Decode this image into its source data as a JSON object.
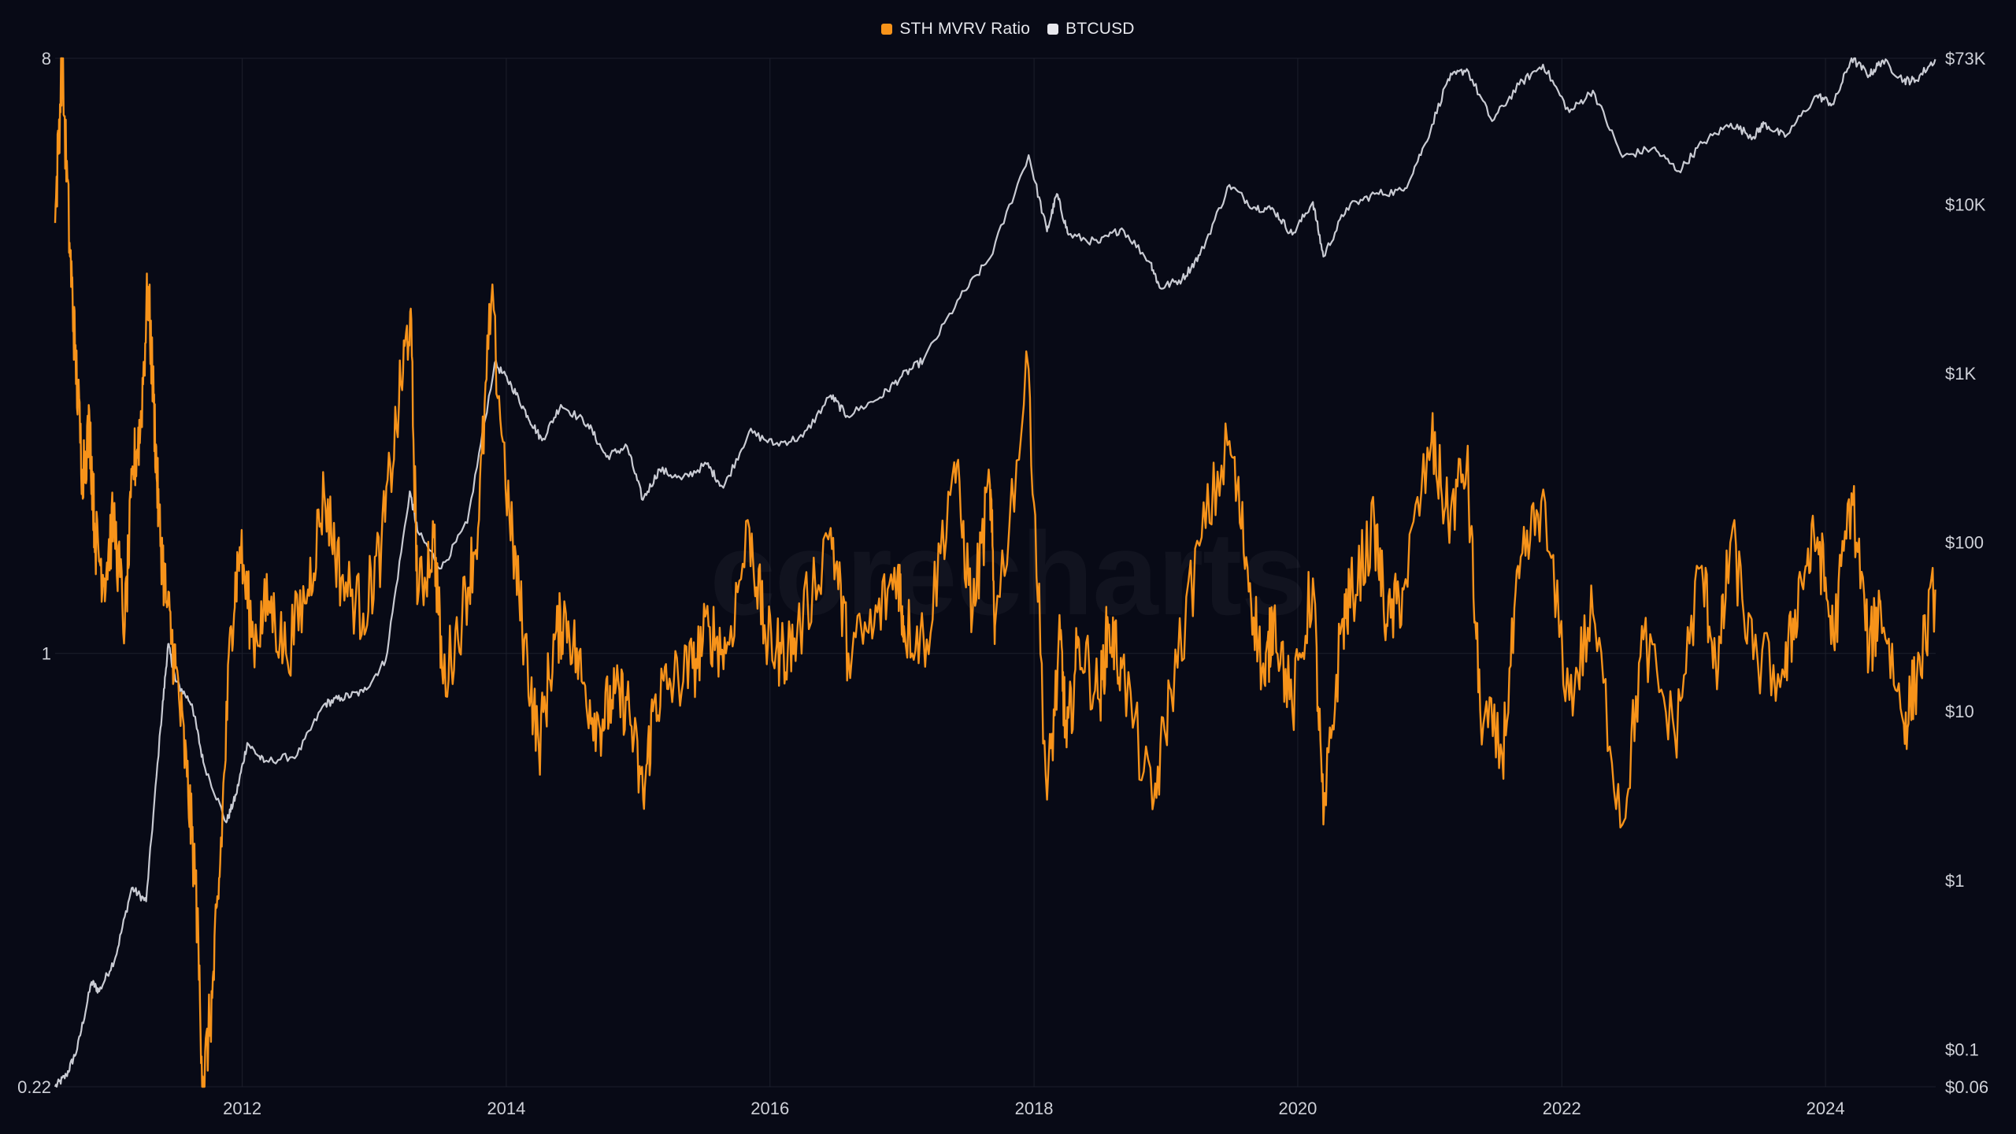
{
  "legend": {
    "items": [
      {
        "label": "STH MVRV Ratio",
        "color": "#f7931a"
      },
      {
        "label": "BTCUSD",
        "color": "#e8e8ee"
      }
    ]
  },
  "watermark": "corecharts",
  "colors": {
    "background": "#080a16",
    "grid": "#1c1f2c",
    "mvrv": "#f7931a",
    "btc": "#c9cbd3",
    "tick_text": "#cfd1d8"
  },
  "chart_data": {
    "type": "line",
    "x_range": [
      "2010-08-01",
      "2024-11-01"
    ],
    "x_ticks": [
      "2012",
      "2014",
      "2016",
      "2018",
      "2020",
      "2022",
      "2024"
    ],
    "y_left": {
      "scale": "log",
      "range": [
        0.22,
        8
      ],
      "ticks": [
        "8",
        "1",
        "0.22"
      ]
    },
    "y_right": {
      "scale": "log",
      "range": [
        0.06,
        73000
      ],
      "ticks": [
        "$73K",
        "$10K",
        "$1K",
        "$100",
        "$10",
        "$1",
        "$0.1",
        "$0.06"
      ]
    },
    "series": [
      {
        "name": "STH MVRV Ratio",
        "axis": "left",
        "color": "#f7931a",
        "points": [
          [
            "2010-08-01",
            4.5
          ],
          [
            "2010-08-20",
            8.0
          ],
          [
            "2010-09-10",
            4.2
          ],
          [
            "2010-09-25",
            2.9
          ],
          [
            "2010-10-15",
            1.9
          ],
          [
            "2010-11-05",
            2.2
          ],
          [
            "2010-11-20",
            1.5
          ],
          [
            "2010-12-15",
            1.3
          ],
          [
            "2011-01-10",
            1.6
          ],
          [
            "2011-02-10",
            1.1
          ],
          [
            "2011-03-05",
            1.9
          ],
          [
            "2011-03-25",
            2.2
          ],
          [
            "2011-04-15",
            3.6
          ],
          [
            "2011-05-01",
            2.4
          ],
          [
            "2011-05-15",
            1.6
          ],
          [
            "2011-06-05",
            1.2
          ],
          [
            "2011-07-01",
            0.95
          ],
          [
            "2011-08-01",
            0.65
          ],
          [
            "2011-08-25",
            0.45
          ],
          [
            "2011-09-15",
            0.22
          ],
          [
            "2011-10-10",
            0.3
          ],
          [
            "2011-11-01",
            0.48
          ],
          [
            "2011-12-01",
            1.1
          ],
          [
            "2011-12-25",
            1.45
          ],
          [
            "2012-02-01",
            1.05
          ],
          [
            "2012-03-15",
            1.2
          ],
          [
            "2012-05-01",
            1.0
          ],
          [
            "2012-07-01",
            1.25
          ],
          [
            "2012-08-15",
            1.75
          ],
          [
            "2012-10-01",
            1.3
          ],
          [
            "2012-12-01",
            1.15
          ],
          [
            "2013-01-20",
            1.45
          ],
          [
            "2013-03-10",
            2.4
          ],
          [
            "2013-04-10",
            3.3
          ],
          [
            "2013-05-01",
            1.2
          ],
          [
            "2013-06-15",
            1.5
          ],
          [
            "2013-07-10",
            0.9
          ],
          [
            "2013-09-01",
            1.15
          ],
          [
            "2013-10-15",
            1.55
          ],
          [
            "2013-11-20",
            3.4
          ],
          [
            "2014-01-10",
            1.6
          ],
          [
            "2014-02-20",
            1.05
          ],
          [
            "2014-04-01",
            0.72
          ],
          [
            "2014-05-15",
            1.05
          ],
          [
            "2014-06-15",
            1.15
          ],
          [
            "2014-08-01",
            0.9
          ],
          [
            "2014-09-15",
            0.78
          ],
          [
            "2014-10-20",
            0.85
          ],
          [
            "2014-12-01",
            0.85
          ],
          [
            "2015-01-15",
            0.6
          ],
          [
            "2015-02-15",
            0.85
          ],
          [
            "2015-04-01",
            0.9
          ],
          [
            "2015-06-01",
            0.95
          ],
          [
            "2015-07-15",
            1.1
          ],
          [
            "2015-09-01",
            1.0
          ],
          [
            "2015-11-05",
            1.55
          ],
          [
            "2015-12-20",
            1.05
          ],
          [
            "2016-02-01",
            1.0
          ],
          [
            "2016-03-15",
            1.05
          ],
          [
            "2016-06-17",
            1.55
          ],
          [
            "2016-08-05",
            1.0
          ],
          [
            "2016-10-15",
            1.1
          ],
          [
            "2016-12-20",
            1.35
          ],
          [
            "2017-01-06",
            1.1
          ],
          [
            "2017-03-10",
            1.05
          ],
          [
            "2017-05-25",
            1.95
          ],
          [
            "2017-07-15",
            1.15
          ],
          [
            "2017-09-01",
            1.8
          ],
          [
            "2017-09-15",
            1.1
          ],
          [
            "2017-12-17",
            2.7
          ],
          [
            "2018-02-06",
            0.6
          ],
          [
            "2018-03-15",
            1.05
          ],
          [
            "2018-04-01",
            0.72
          ],
          [
            "2018-05-05",
            1.05
          ],
          [
            "2018-07-01",
            0.85
          ],
          [
            "2018-07-25",
            1.1
          ],
          [
            "2018-09-01",
            0.95
          ],
          [
            "2018-11-25",
            0.58
          ],
          [
            "2019-01-15",
            0.88
          ],
          [
            "2019-04-10",
            1.5
          ],
          [
            "2019-06-26",
            2.1
          ],
          [
            "2019-08-15",
            1.35
          ],
          [
            "2019-10-01",
            0.9
          ],
          [
            "2019-10-26",
            1.15
          ],
          [
            "2019-12-17",
            0.82
          ],
          [
            "2020-02-12",
            1.3
          ],
          [
            "2020-03-12",
            0.55
          ],
          [
            "2020-05-01",
            1.1
          ],
          [
            "2020-06-01",
            1.25
          ],
          [
            "2020-08-01",
            1.55
          ],
          [
            "2020-09-05",
            1.1
          ],
          [
            "2020-10-20",
            1.25
          ],
          [
            "2021-01-05",
            2.1
          ],
          [
            "2021-02-20",
            1.6
          ],
          [
            "2021-04-13",
            1.95
          ],
          [
            "2021-05-20",
            0.82
          ],
          [
            "2021-07-20",
            0.7
          ],
          [
            "2021-09-05",
            1.3
          ],
          [
            "2021-11-05",
            1.7
          ],
          [
            "2022-01-22",
            0.85
          ],
          [
            "2022-03-28",
            1.15
          ],
          [
            "2022-06-18",
            0.55
          ],
          [
            "2022-08-15",
            1.05
          ],
          [
            "2022-11-10",
            0.75
          ],
          [
            "2023-01-20",
            1.35
          ],
          [
            "2023-03-10",
            0.95
          ],
          [
            "2023-04-15",
            1.5
          ],
          [
            "2023-06-15",
            0.98
          ],
          [
            "2023-09-10",
            0.92
          ],
          [
            "2023-10-25",
            1.3
          ],
          [
            "2023-12-10",
            1.5
          ],
          [
            "2024-01-23",
            1.05
          ],
          [
            "2024-03-13",
            1.75
          ],
          [
            "2024-05-01",
            1.0
          ],
          [
            "2024-06-01",
            1.2
          ],
          [
            "2024-08-05",
            0.78
          ],
          [
            "2024-09-10",
            0.92
          ],
          [
            "2024-10-31",
            1.25
          ]
        ]
      },
      {
        "name": "BTCUSD",
        "axis": "right",
        "color": "#c9cbd3",
        "points": [
          [
            "2010-08-01",
            0.06
          ],
          [
            "2010-09-01",
            0.07
          ],
          [
            "2010-10-01",
            0.1
          ],
          [
            "2010-11-10",
            0.25
          ],
          [
            "2010-12-01",
            0.22
          ],
          [
            "2011-01-15",
            0.35
          ],
          [
            "2011-03-01",
            0.9
          ],
          [
            "2011-04-10",
            0.75
          ],
          [
            "2011-05-20",
            8.0
          ],
          [
            "2011-06-10",
            25.0
          ],
          [
            "2011-07-01",
            15.0
          ],
          [
            "2011-08-15",
            11.0
          ],
          [
            "2011-09-15",
            5.0
          ],
          [
            "2011-11-18",
            2.2
          ],
          [
            "2011-12-15",
            3.2
          ],
          [
            "2012-01-15",
            6.5
          ],
          [
            "2012-03-01",
            5.0
          ],
          [
            "2012-06-01",
            5.5
          ],
          [
            "2012-08-15",
            11.0
          ],
          [
            "2012-10-01",
            12.0
          ],
          [
            "2012-12-01",
            13.0
          ],
          [
            "2013-02-01",
            20.0
          ],
          [
            "2013-04-09",
            200.0
          ],
          [
            "2013-05-01",
            115.0
          ],
          [
            "2013-07-05",
            70.0
          ],
          [
            "2013-09-15",
            130.0
          ],
          [
            "2013-11-30",
            1150.0
          ],
          [
            "2014-01-15",
            850.0
          ],
          [
            "2014-03-01",
            560.0
          ],
          [
            "2014-04-10",
            400.0
          ],
          [
            "2014-06-01",
            650.0
          ],
          [
            "2014-08-15",
            500.0
          ],
          [
            "2014-10-05",
            320.0
          ],
          [
            "2014-12-01",
            370.0
          ],
          [
            "2015-01-14",
            178.0
          ],
          [
            "2015-03-01",
            270.0
          ],
          [
            "2015-05-01",
            235.0
          ],
          [
            "2015-07-10",
            290.0
          ],
          [
            "2015-08-25",
            210.0
          ],
          [
            "2015-11-04",
            450.0
          ],
          [
            "2016-01-15",
            380.0
          ],
          [
            "2016-04-01",
            420.0
          ],
          [
            "2016-06-17",
            740.0
          ],
          [
            "2016-08-01",
            560.0
          ],
          [
            "2016-11-01",
            720.0
          ],
          [
            "2016-12-31",
            960.0
          ],
          [
            "2017-03-01",
            1200.0
          ],
          [
            "2017-06-10",
            2800.0
          ],
          [
            "2017-09-01",
            4800.0
          ],
          [
            "2017-12-17",
            19500.0
          ],
          [
            "2018-02-06",
            6900.0
          ],
          [
            "2018-03-05",
            11500.0
          ],
          [
            "2018-04-06",
            6600.0
          ],
          [
            "2018-06-28",
            5900.0
          ],
          [
            "2018-09-01",
            7200.0
          ],
          [
            "2018-11-20",
            4500.0
          ],
          [
            "2018-12-15",
            3200.0
          ],
          [
            "2019-02-15",
            3600.0
          ],
          [
            "2019-04-05",
            5000.0
          ],
          [
            "2019-06-26",
            13000.0
          ],
          [
            "2019-09-01",
            9600.0
          ],
          [
            "2019-10-26",
            9300.0
          ],
          [
            "2019-12-17",
            6600.0
          ],
          [
            "2020-02-12",
            10300.0
          ],
          [
            "2020-03-12",
            4900.0
          ],
          [
            "2020-05-15",
            9500.0
          ],
          [
            "2020-08-01",
            11500.0
          ],
          [
            "2020-10-20",
            12000.0
          ],
          [
            "2020-12-20",
            23000.0
          ],
          [
            "2021-02-20",
            55000.0
          ],
          [
            "2021-04-13",
            63000.0
          ],
          [
            "2021-06-22",
            31000.0
          ],
          [
            "2021-09-05",
            51000.0
          ],
          [
            "2021-11-10",
            67000.0
          ],
          [
            "2022-01-22",
            35000.0
          ],
          [
            "2022-03-28",
            47000.0
          ],
          [
            "2022-06-18",
            19000.0
          ],
          [
            "2022-09-10",
            21500.0
          ],
          [
            "2022-11-21",
            15700.0
          ],
          [
            "2023-01-25",
            23000.0
          ],
          [
            "2023-04-14",
            30000.0
          ],
          [
            "2023-06-15",
            25000.0
          ],
          [
            "2023-07-15",
            30000.0
          ],
          [
            "2023-09-11",
            25000.0
          ],
          [
            "2023-12-08",
            44000.0
          ],
          [
            "2024-01-23",
            39000.0
          ],
          [
            "2024-03-13",
            73000.0
          ],
          [
            "2024-05-01",
            58000.0
          ],
          [
            "2024-06-07",
            71000.0
          ],
          [
            "2024-08-05",
            54000.0
          ],
          [
            "2024-09-06",
            54000.0
          ],
          [
            "2024-10-31",
            72000.0
          ]
        ]
      }
    ],
    "grid": true,
    "legend_position": "top-center"
  }
}
